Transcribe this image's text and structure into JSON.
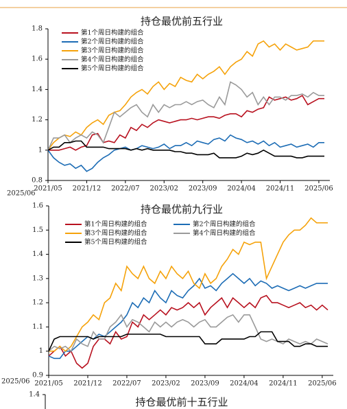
{
  "left_panel": {
    "x_labels": [
      "2025/06",
      "2025/06"
    ]
  },
  "chart_data": [
    {
      "type": "line",
      "title": "持仓最优前五行业",
      "categories": [
        "2021/05",
        "2021/06",
        "2021/07",
        "2021/08",
        "2021/09",
        "2021/10",
        "2021/11",
        "2021/12",
        "2022/01",
        "2022/02",
        "2022/03",
        "2022/04",
        "2022/05",
        "2022/06",
        "2022/07",
        "2022/08",
        "2022/09",
        "2022/10",
        "2022/11",
        "2022/12",
        "2023/01",
        "2023/02",
        "2023/03",
        "2023/04",
        "2023/05",
        "2023/06",
        "2023/07",
        "2023/08",
        "2023/09",
        "2023/10",
        "2023/11",
        "2023/12",
        "2024/01",
        "2024/02",
        "2024/03",
        "2024/04",
        "2024/05",
        "2024/06",
        "2024/07",
        "2024/08",
        "2024/09",
        "2024/10",
        "2024/11",
        "2024/12",
        "2025/01",
        "2025/02",
        "2025/03",
        "2025/04",
        "2025/05",
        "2025/06",
        "2025/07"
      ],
      "xticks": [
        "2021/05",
        "2021/12",
        "2022/07",
        "2023/02",
        "2023/09",
        "2024/04",
        "2024/11",
        "2025/06"
      ],
      "ylim": [
        0.8,
        1.8
      ],
      "yticks": [
        0.8,
        1,
        1.2,
        1.4,
        1.6,
        1.8
      ],
      "legend": "upper left",
      "legend_columns": 1,
      "series": [
        {
          "name": "第1个周日构建的组合",
          "color": "#b8111f",
          "values": [
            1.0,
            1.0,
            1.0,
            1.01,
            1.02,
            1.0,
            1.02,
            1.03,
            1.1,
            1.11,
            1.05,
            1.06,
            1.05,
            1.1,
            1.08,
            1.15,
            1.13,
            1.17,
            1.15,
            1.18,
            1.2,
            1.19,
            1.18,
            1.19,
            1.2,
            1.2,
            1.21,
            1.2,
            1.21,
            1.22,
            1.22,
            1.21,
            1.23,
            1.24,
            1.24,
            1.22,
            1.26,
            1.25,
            1.27,
            1.28,
            1.35,
            1.33,
            1.34,
            1.35,
            1.33,
            1.34,
            1.36,
            1.3,
            1.32,
            1.34,
            1.34
          ]
        },
        {
          "name": "第2个周日构建的组合",
          "color": "#1c6cb5",
          "values": [
            1.0,
            0.95,
            0.92,
            0.9,
            0.91,
            0.88,
            0.9,
            0.86,
            0.88,
            0.92,
            0.95,
            0.97,
            1.0,
            1.01,
            1.02,
            1.0,
            1.01,
            1.03,
            1.02,
            1.01,
            1.02,
            1.04,
            1.01,
            1.03,
            1.03,
            1.05,
            1.03,
            1.06,
            1.05,
            1.04,
            1.07,
            1.08,
            1.06,
            1.1,
            1.08,
            1.07,
            1.05,
            1.06,
            1.04,
            1.06,
            1.03,
            1.05,
            1.02,
            1.03,
            1.04,
            1.02,
            1.03,
            1.04,
            1.02,
            1.05,
            1.05
          ]
        },
        {
          "name": "第3个周日构建的组合",
          "color": "#f5a20a",
          "values": [
            1.0,
            1.05,
            1.08,
            1.1,
            1.09,
            1.12,
            1.1,
            1.15,
            1.18,
            1.2,
            1.17,
            1.23,
            1.25,
            1.26,
            1.3,
            1.35,
            1.38,
            1.4,
            1.37,
            1.42,
            1.45,
            1.4,
            1.44,
            1.42,
            1.48,
            1.46,
            1.45,
            1.5,
            1.47,
            1.5,
            1.52,
            1.55,
            1.5,
            1.55,
            1.58,
            1.6,
            1.65,
            1.62,
            1.7,
            1.72,
            1.68,
            1.7,
            1.66,
            1.7,
            1.68,
            1.66,
            1.67,
            1.68,
            1.72,
            1.72,
            1.72
          ]
        },
        {
          "name": "第4个周日构建的组合",
          "color": "#9a9a9a",
          "values": [
            1.0,
            1.08,
            1.08,
            1.1,
            1.05,
            1.08,
            1.1,
            1.08,
            1.12,
            1.1,
            1.05,
            1.15,
            1.25,
            1.22,
            1.25,
            1.28,
            1.3,
            1.25,
            1.22,
            1.3,
            1.25,
            1.3,
            1.28,
            1.3,
            1.3,
            1.32,
            1.3,
            1.32,
            1.33,
            1.3,
            1.28,
            1.35,
            1.3,
            1.45,
            1.43,
            1.4,
            1.35,
            1.38,
            1.3,
            1.35,
            1.3,
            1.35,
            1.35,
            1.33,
            1.36,
            1.36,
            1.37,
            1.35,
            1.38,
            1.36,
            1.36
          ]
        },
        {
          "name": "第5个周日构建的组合",
          "color": "#000000",
          "values": [
            1.0,
            1.02,
            1.02,
            1.05,
            1.05,
            1.06,
            1.06,
            1.02,
            1.02,
            1.02,
            1.02,
            1.01,
            1.01,
            1.01,
            1.01,
            1.0,
            1.01,
            1.0,
            1.01,
            1.0,
            1.0,
            1.0,
            1.0,
            0.99,
            0.99,
            0.98,
            0.98,
            0.97,
            0.97,
            0.97,
            0.98,
            0.95,
            0.95,
            0.95,
            0.95,
            0.96,
            0.98,
            0.97,
            0.98,
            1.0,
            0.98,
            0.96,
            0.96,
            0.96,
            0.96,
            0.95,
            0.95,
            0.96,
            0.96,
            0.96,
            0.96
          ]
        }
      ]
    },
    {
      "type": "line",
      "title": "持仓最优前九行业",
      "categories": [
        "2021/05",
        "2021/06",
        "2021/07",
        "2021/08",
        "2021/09",
        "2021/10",
        "2021/11",
        "2021/12",
        "2022/01",
        "2022/02",
        "2022/03",
        "2022/04",
        "2022/05",
        "2022/06",
        "2022/07",
        "2022/08",
        "2022/09",
        "2022/10",
        "2022/11",
        "2022/12",
        "2023/01",
        "2023/02",
        "2023/03",
        "2023/04",
        "2023/05",
        "2023/06",
        "2023/07",
        "2023/08",
        "2023/09",
        "2023/10",
        "2023/11",
        "2023/12",
        "2024/01",
        "2024/02",
        "2024/03",
        "2024/04",
        "2024/05",
        "2024/06",
        "2024/07",
        "2024/08",
        "2024/09",
        "2024/10",
        "2024/11",
        "2024/12",
        "2025/01",
        "2025/02",
        "2025/03",
        "2025/04",
        "2025/05",
        "2025/06",
        "2025/07"
      ],
      "xticks": [
        "2021/05",
        "2021/12",
        "2022/07",
        "2023/02",
        "2023/09",
        "2024/04",
        "2024/11",
        "2025/06"
      ],
      "ylim": [
        0.9,
        1.6
      ],
      "yticks": [
        0.9,
        1,
        1.1,
        1.2,
        1.3,
        1.4,
        1.5,
        1.6
      ],
      "legend": "upper left",
      "legend_columns": 2,
      "series": [
        {
          "name": "第1个周日构建的组合",
          "color": "#b8111f",
          "values": [
            0.98,
            1.0,
            1.02,
            0.98,
            1.0,
            0.95,
            0.93,
            0.95,
            1.02,
            1.05,
            1.05,
            1.03,
            1.08,
            1.05,
            1.06,
            1.12,
            1.1,
            1.15,
            1.13,
            1.15,
            1.17,
            1.15,
            1.18,
            1.17,
            1.18,
            1.2,
            1.18,
            1.2,
            1.15,
            1.18,
            1.2,
            1.22,
            1.18,
            1.22,
            1.2,
            1.18,
            1.2,
            1.18,
            1.22,
            1.23,
            1.2,
            1.2,
            1.19,
            1.18,
            1.19,
            1.2,
            1.18,
            1.19,
            1.17,
            1.19,
            1.17
          ]
        },
        {
          "name": "第2个周日构建的组合",
          "color": "#1c6cb5",
          "values": [
            0.98,
            0.97,
            0.97,
            1.0,
            1.0,
            1.02,
            1.04,
            1.06,
            1.05,
            1.07,
            1.06,
            1.08,
            1.1,
            1.12,
            1.15,
            1.2,
            1.18,
            1.22,
            1.2,
            1.25,
            1.22,
            1.2,
            1.25,
            1.23,
            1.22,
            1.25,
            1.27,
            1.3,
            1.26,
            1.27,
            1.25,
            1.28,
            1.3,
            1.32,
            1.3,
            1.28,
            1.3,
            1.27,
            1.29,
            1.28,
            1.26,
            1.27,
            1.26,
            1.25,
            1.26,
            1.27,
            1.26,
            1.27,
            1.28,
            1.28,
            1.28
          ]
        },
        {
          "name": "第3个周日构建的组合",
          "color": "#f5a20a",
          "values": [
            1.0,
            1.0,
            1.02,
            1.0,
            1.02,
            1.06,
            1.1,
            1.12,
            1.15,
            1.13,
            1.2,
            1.22,
            1.28,
            1.25,
            1.35,
            1.32,
            1.3,
            1.35,
            1.3,
            1.28,
            1.33,
            1.3,
            1.35,
            1.32,
            1.3,
            1.33,
            1.28,
            1.26,
            1.32,
            1.28,
            1.3,
            1.35,
            1.38,
            1.42,
            1.4,
            1.45,
            1.44,
            1.45,
            1.45,
            1.3,
            1.35,
            1.4,
            1.45,
            1.48,
            1.5,
            1.5,
            1.52,
            1.55,
            1.53,
            1.53,
            1.53
          ]
        },
        {
          "name": "第4个周日构建的组合",
          "color": "#9a9a9a",
          "values": [
            1.0,
            1.02,
            1.01,
            1.02,
            1.0,
            1.05,
            1.03,
            1.02,
            1.08,
            1.05,
            1.05,
            1.1,
            1.12,
            1.15,
            1.1,
            1.13,
            1.12,
            1.1,
            1.08,
            1.12,
            1.1,
            1.12,
            1.1,
            1.12,
            1.13,
            1.12,
            1.1,
            1.12,
            1.13,
            1.1,
            1.1,
            1.12,
            1.14,
            1.15,
            1.12,
            1.15,
            1.15,
            1.1,
            1.05,
            1.04,
            1.05,
            1.04,
            1.03,
            1.05,
            1.04,
            1.03,
            1.04,
            1.03,
            1.05,
            1.04,
            1.03
          ]
        },
        {
          "name": "第5个周日构建的组合",
          "color": "#000000",
          "values": [
            1.0,
            1.05,
            1.06,
            1.06,
            1.06,
            1.06,
            1.06,
            1.06,
            1.05,
            1.06,
            1.06,
            1.06,
            1.06,
            1.06,
            1.07,
            1.07,
            1.07,
            1.07,
            1.07,
            1.07,
            1.07,
            1.06,
            1.06,
            1.06,
            1.06,
            1.06,
            1.06,
            1.06,
            1.03,
            1.03,
            1.03,
            1.05,
            1.05,
            1.05,
            1.05,
            1.05,
            1.06,
            1.06,
            1.08,
            1.08,
            1.08,
            1.04,
            1.04,
            1.04,
            1.02,
            1.02,
            1.03,
            1.03,
            1.02,
            1.02,
            1.02
          ]
        }
      ]
    },
    {
      "type": "line",
      "title": "持仓最优前十五行业",
      "yticks": [
        1.4
      ]
    }
  ]
}
